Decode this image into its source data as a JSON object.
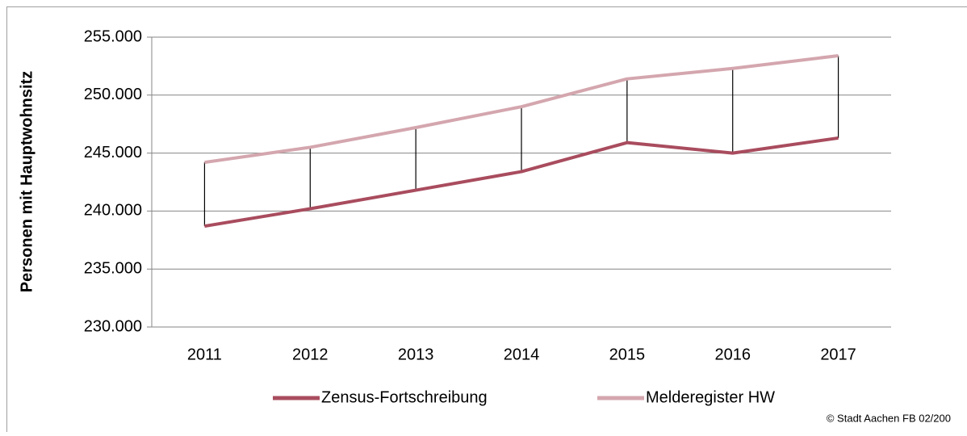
{
  "chart_data": {
    "type": "line",
    "y_label": "Personen mit Hauptwohnsitz",
    "categories": [
      "2011",
      "2012",
      "2013",
      "2014",
      "2015",
      "2016",
      "2017"
    ],
    "series": [
      {
        "name": "Zensus-Fortschreibung",
        "color": "#a94c5e",
        "values": [
          238700,
          240200,
          241800,
          243400,
          245900,
          245000,
          246300
        ]
      },
      {
        "name": "Melderegister HW",
        "color": "#d4a6ae",
        "values": [
          244200,
          245500,
          247200,
          249000,
          251400,
          252300,
          253400
        ]
      }
    ],
    "ylim": [
      230000,
      255000
    ],
    "yticks": [
      {
        "value": 230000,
        "label": "230.000"
      },
      {
        "value": 235000,
        "label": "235.000"
      },
      {
        "value": 240000,
        "label": "240.000"
      },
      {
        "value": 245000,
        "label": "245.000"
      },
      {
        "value": 250000,
        "label": "250.000"
      },
      {
        "value": 255000,
        "label": "255.000"
      }
    ],
    "grid": true,
    "high_low_lines": true,
    "legend": "bottom",
    "note": "© Stadt Aachen FB 02/200"
  }
}
